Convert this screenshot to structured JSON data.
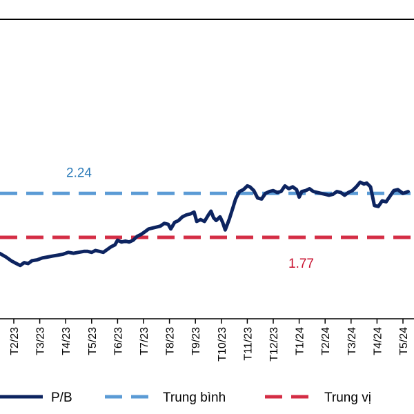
{
  "chart_data": {
    "type": "line",
    "x": [
      "T2/23",
      "T3/23",
      "T4/23",
      "T5/23",
      "T6/23",
      "T7/23",
      "T8/23",
      "T9/23",
      "T10/23",
      "T11/23",
      "T12/23",
      "T1/24",
      "T2/24",
      "T3/24",
      "T4/24",
      "T5/24"
    ],
    "series": [
      {
        "name": "P/B",
        "color": "#0d2460",
        "points": [
          [
            -0.55,
            1.6
          ],
          [
            -0.3,
            1.56
          ],
          [
            -0.1,
            1.52
          ],
          [
            0.1,
            1.49
          ],
          [
            0.25,
            1.47
          ],
          [
            0.4,
            1.5
          ],
          [
            0.55,
            1.49
          ],
          [
            0.7,
            1.52
          ],
          [
            0.9,
            1.53
          ],
          [
            1.1,
            1.55
          ],
          [
            1.3,
            1.56
          ],
          [
            1.5,
            1.57
          ],
          [
            1.7,
            1.58
          ],
          [
            1.9,
            1.59
          ],
          [
            2.1,
            1.61
          ],
          [
            2.3,
            1.6
          ],
          [
            2.5,
            1.61
          ],
          [
            2.7,
            1.62
          ],
          [
            2.85,
            1.62
          ],
          [
            3.0,
            1.61
          ],
          [
            3.15,
            1.63
          ],
          [
            3.3,
            1.62
          ],
          [
            3.45,
            1.61
          ],
          [
            3.6,
            1.64
          ],
          [
            3.75,
            1.67
          ],
          [
            3.9,
            1.69
          ],
          [
            4.0,
            1.74
          ],
          [
            4.15,
            1.72
          ],
          [
            4.3,
            1.73
          ],
          [
            4.45,
            1.72
          ],
          [
            4.6,
            1.74
          ],
          [
            4.75,
            1.78
          ],
          [
            4.9,
            1.8
          ],
          [
            5.05,
            1.83
          ],
          [
            5.2,
            1.86
          ],
          [
            5.35,
            1.87
          ],
          [
            5.5,
            1.88
          ],
          [
            5.65,
            1.89
          ],
          [
            5.8,
            1.92
          ],
          [
            5.95,
            1.91
          ],
          [
            6.05,
            1.86
          ],
          [
            6.2,
            1.93
          ],
          [
            6.35,
            1.95
          ],
          [
            6.5,
            1.99
          ],
          [
            6.65,
            2.01
          ],
          [
            6.8,
            2.02
          ],
          [
            6.95,
            2.04
          ],
          [
            7.05,
            1.94
          ],
          [
            7.2,
            1.96
          ],
          [
            7.35,
            1.94
          ],
          [
            7.5,
            2.01
          ],
          [
            7.6,
            2.05
          ],
          [
            7.7,
            1.98
          ],
          [
            7.8,
            1.95
          ],
          [
            7.95,
            1.99
          ],
          [
            8.05,
            1.93
          ],
          [
            8.15,
            1.85
          ],
          [
            8.3,
            1.96
          ],
          [
            8.45,
            2.09
          ],
          [
            8.55,
            2.18
          ],
          [
            8.7,
            2.26
          ],
          [
            8.85,
            2.28
          ],
          [
            9.0,
            2.32
          ],
          [
            9.1,
            2.31
          ],
          [
            9.25,
            2.27
          ],
          [
            9.4,
            2.19
          ],
          [
            9.55,
            2.18
          ],
          [
            9.7,
            2.24
          ],
          [
            9.85,
            2.26
          ],
          [
            10.0,
            2.27
          ],
          [
            10.15,
            2.25
          ],
          [
            10.3,
            2.26
          ],
          [
            10.45,
            2.32
          ],
          [
            10.6,
            2.29
          ],
          [
            10.75,
            2.31
          ],
          [
            10.9,
            2.28
          ],
          [
            11.0,
            2.2
          ],
          [
            11.1,
            2.26
          ],
          [
            11.25,
            2.27
          ],
          [
            11.4,
            2.29
          ],
          [
            11.55,
            2.26
          ],
          [
            11.7,
            2.25
          ],
          [
            11.85,
            2.24
          ],
          [
            12.0,
            2.23
          ],
          [
            12.15,
            2.22
          ],
          [
            12.3,
            2.23
          ],
          [
            12.45,
            2.26
          ],
          [
            12.6,
            2.25
          ],
          [
            12.75,
            2.22
          ],
          [
            12.9,
            2.25
          ],
          [
            13.05,
            2.27
          ],
          [
            13.2,
            2.31
          ],
          [
            13.35,
            2.36
          ],
          [
            13.5,
            2.34
          ],
          [
            13.6,
            2.35
          ],
          [
            13.75,
            2.31
          ],
          [
            13.9,
            2.11
          ],
          [
            14.05,
            2.1
          ],
          [
            14.2,
            2.16
          ],
          [
            14.35,
            2.15
          ],
          [
            14.5,
            2.21
          ],
          [
            14.65,
            2.27
          ],
          [
            14.8,
            2.28
          ],
          [
            15.0,
            2.24
          ],
          [
            15.2,
            2.26
          ]
        ]
      },
      {
        "name": "Trung bình",
        "value": 2.24,
        "color": "#5b9bd5"
      },
      {
        "name": "Trung vị",
        "value": 1.77,
        "color": "#d42d45"
      }
    ],
    "annotations": [
      {
        "text": "2.24",
        "color": "#2a7ab8"
      },
      {
        "text": "1.77",
        "color": "#c8102e"
      }
    ],
    "ylim": [
      0.9,
      4.1
    ],
    "xlim": [
      -0.55,
      15.2
    ],
    "grid": false,
    "legend": "bottom"
  }
}
